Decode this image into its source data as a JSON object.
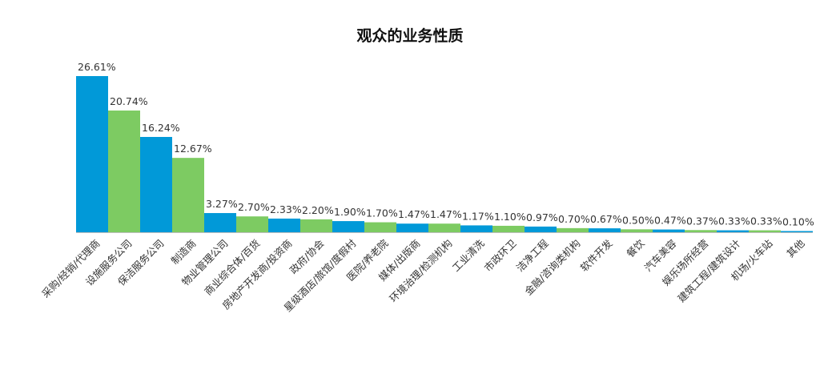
{
  "chart_data": {
    "type": "bar",
    "title": "观众的业务性质",
    "xlabel": "",
    "ylabel": "",
    "ylim": [
      0,
      26.61
    ],
    "grid": false,
    "legend": "none",
    "colors": [
      "#0199D8",
      "#7DCB62"
    ],
    "categories": [
      "采购/经销/代理商",
      "设施服务公司",
      "保洁服务公司",
      "制造商",
      "物业管理公司",
      "商业综合体/百货",
      "房地产开发商/投资商",
      "政府/协会",
      "星级酒店/旅馆/度假村",
      "医院/养老院",
      "媒体/出版商",
      "环境治理/检测机构",
      "工业清洗",
      "市政环卫",
      "洁净工程",
      "金融/咨询类机构",
      "软件开发",
      "餐饮",
      "汽车美容",
      "娱乐场所经营",
      "建筑工程/建筑设计",
      "机场/火车站",
      "其他"
    ],
    "values": [
      26.61,
      20.74,
      16.24,
      12.67,
      3.27,
      2.7,
      2.33,
      2.2,
      1.9,
      1.7,
      1.47,
      1.47,
      1.17,
      1.1,
      0.97,
      0.7,
      0.67,
      0.5,
      0.47,
      0.37,
      0.33,
      0.33,
      0.1
    ],
    "data_labels": [
      "26.61%",
      "20.74%",
      "16.24%",
      "12.67%",
      "3.27%",
      "2.70%",
      "2.33%",
      "2.20%",
      "1.90%",
      "1.70%",
      "1.47%",
      "1.47%",
      "1.17%",
      "1.10%",
      "0.97%",
      "0.70%",
      "0.67%",
      "0.50%",
      "0.47%",
      "0.37%",
      "0.33%",
      "0.33%",
      "0.10%"
    ]
  }
}
